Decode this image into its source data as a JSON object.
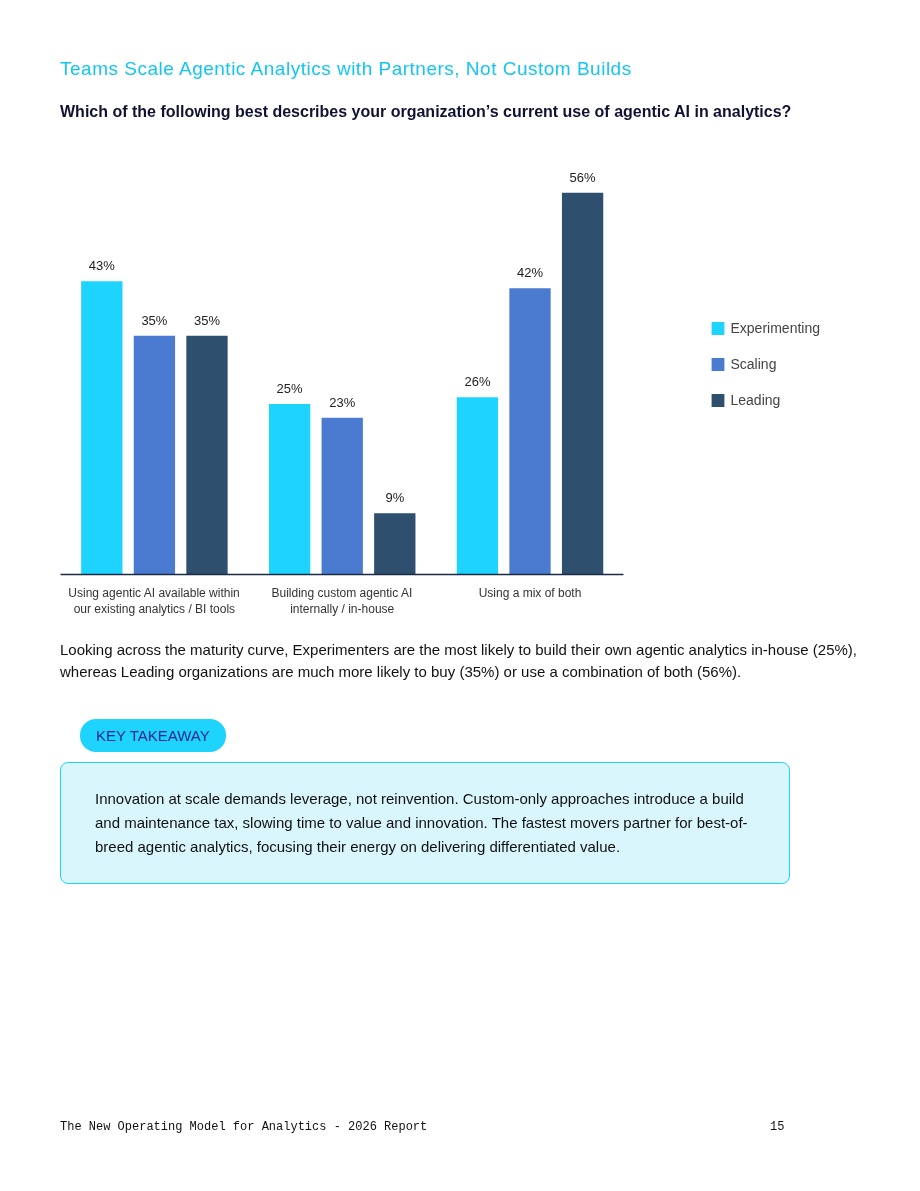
{
  "chart_data": {
    "type": "bar",
    "title": "Teams Scale Agentic Analytics with Partners, Not Custom Builds",
    "subtitle": "Which of the following best describes your organization’s current use of agentic AI in analytics?",
    "categories": [
      "Using agentic AI available within our existing analytics / BI tools",
      "Building custom agentic AI internally / in-house",
      "Using a mix of both"
    ],
    "series": [
      {
        "name": "Experimenting",
        "color": "#1fd3ff",
        "values": [
          43,
          25,
          26
        ],
        "value_labels": [
          "43%",
          "25%",
          "26%"
        ]
      },
      {
        "name": "Scaling",
        "color": "#4a7bd0",
        "values": [
          35,
          23,
          42
        ],
        "value_labels": [
          "35%",
          "23%",
          "42%"
        ]
      },
      {
        "name": "Leading",
        "color": "#2e4f6e",
        "values": [
          35,
          9,
          56
        ],
        "value_labels": [
          "35%",
          "9%",
          "56%"
        ]
      }
    ],
    "legend": "right",
    "grid": false,
    "tick_labels": "x",
    "annotations": [
      "Looking across the maturity curve, Experimenters are the most likely to build their own agentic analytics in-house (25%), whereas Leading organizations are much more likely to buy (35%) or use a combination of both (56%).",
      "KEY TAKEAWAY",
      "Innovation at scale demands leverage, not reinvention. Custom-only approaches introduce a build and maintenance tax, slowing time to value and innovation. The fastest movers partner for best-of-breed agentic analytics, focusing their energy on delivering differentiated value.",
      "The New Operating Model for Analytics - 2026 Report",
      "15"
    ]
  }
}
